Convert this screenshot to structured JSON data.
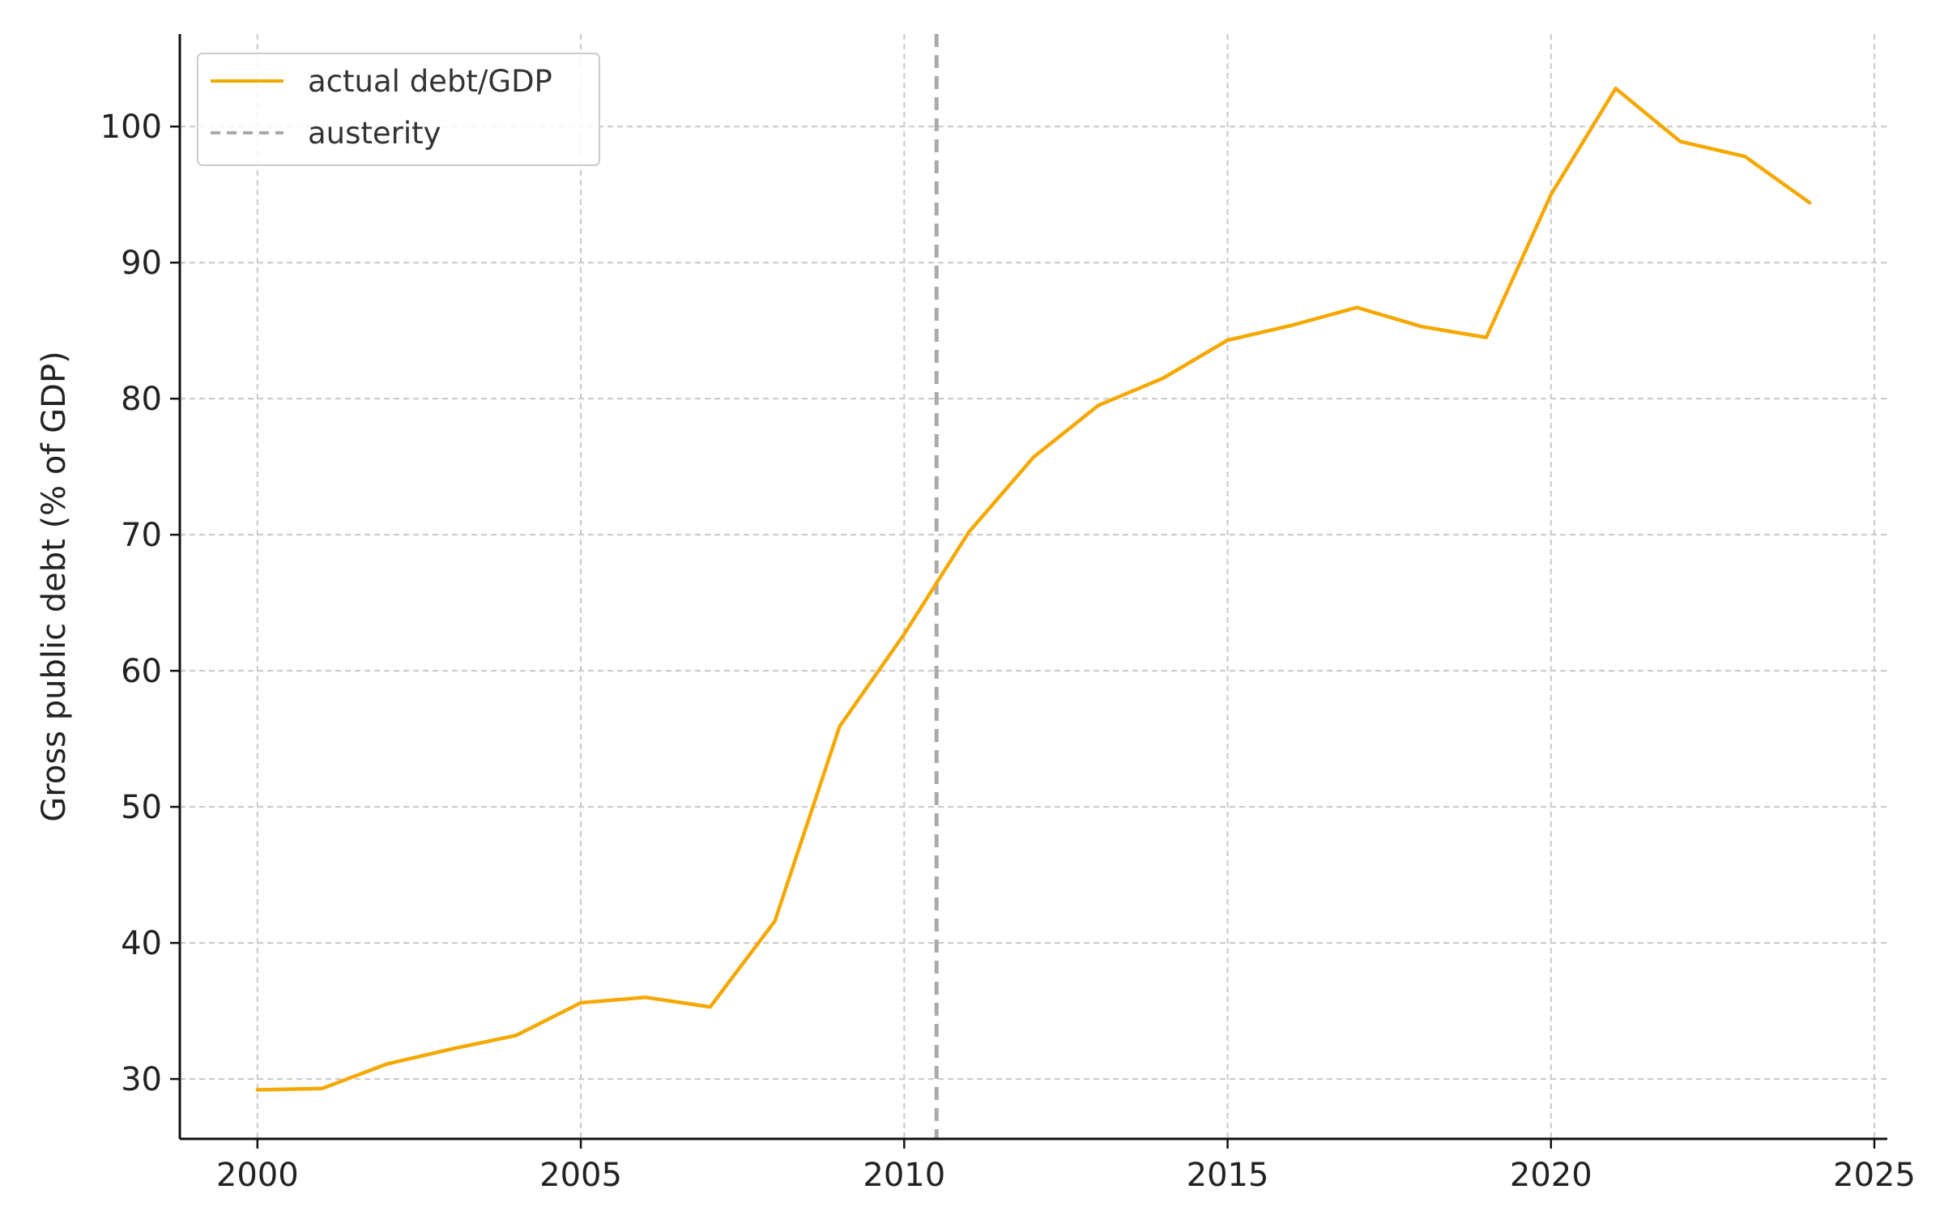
{
  "chart_data": {
    "type": "line",
    "ylabel": "Gross public debt (% of GDP)",
    "xlabel": "",
    "xlim": [
      1998.8,
      2025.2
    ],
    "ylim": [
      25.6,
      106.8
    ],
    "xticks": [
      2000,
      2005,
      2010,
      2015,
      2020,
      2025
    ],
    "yticks": [
      30,
      40,
      50,
      60,
      70,
      80,
      90,
      100
    ],
    "grid": true,
    "legend_position": "top-left",
    "series": [
      {
        "name": "actual debt/GDP",
        "color": "#F5A800",
        "x": [
          2000,
          2001,
          2002,
          2003,
          2004,
          2005,
          2006,
          2007,
          2008,
          2009,
          2010,
          2011,
          2012,
          2013,
          2014,
          2015,
          2016,
          2017,
          2018,
          2019,
          2020,
          2021,
          2022,
          2023,
          2024
        ],
        "y": [
          29.2,
          29.3,
          31.1,
          32.2,
          33.2,
          35.6,
          36.0,
          35.3,
          41.6,
          55.9,
          62.7,
          70.2,
          75.7,
          79.5,
          81.5,
          84.3,
          85.4,
          86.7,
          85.3,
          84.5,
          95.0,
          102.8,
          98.9,
          97.8,
          94.4
        ]
      }
    ],
    "reference_lines": [
      {
        "name": "austerity",
        "orientation": "vertical",
        "x": 2010.5,
        "color": "#AAAAAA",
        "style": "dashed"
      }
    ]
  }
}
